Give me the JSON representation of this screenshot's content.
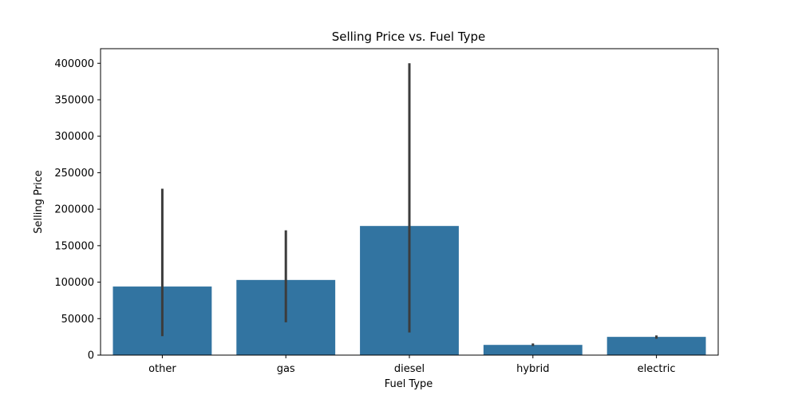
{
  "chart_data": {
    "type": "bar",
    "title": "Selling Price vs. Fuel Type",
    "xlabel": "Fuel Type",
    "ylabel": "Selling Price",
    "categories": [
      "other",
      "gas",
      "diesel",
      "hybrid",
      "electric"
    ],
    "values": [
      94000,
      103000,
      177000,
      14000,
      25000
    ],
    "error_bars": [
      {
        "low": 26000,
        "high": 228000
      },
      {
        "low": 45000,
        "high": 171000
      },
      {
        "low": 31000,
        "high": 400000
      },
      {
        "low": 12500,
        "high": 16000
      },
      {
        "low": 22500,
        "high": 27000
      }
    ],
    "ylim": [
      0,
      420000
    ],
    "yticks": [
      0,
      50000,
      100000,
      150000,
      200000,
      250000,
      300000,
      350000,
      400000
    ],
    "ytick_labels": [
      "0",
      "50000",
      "100000",
      "150000",
      "200000",
      "250000",
      "300000",
      "350000",
      "400000"
    ],
    "grid": false,
    "colors": {
      "bar": "#3274a1",
      "errorbar": "#3c3c3c",
      "axis": "#000000"
    }
  }
}
